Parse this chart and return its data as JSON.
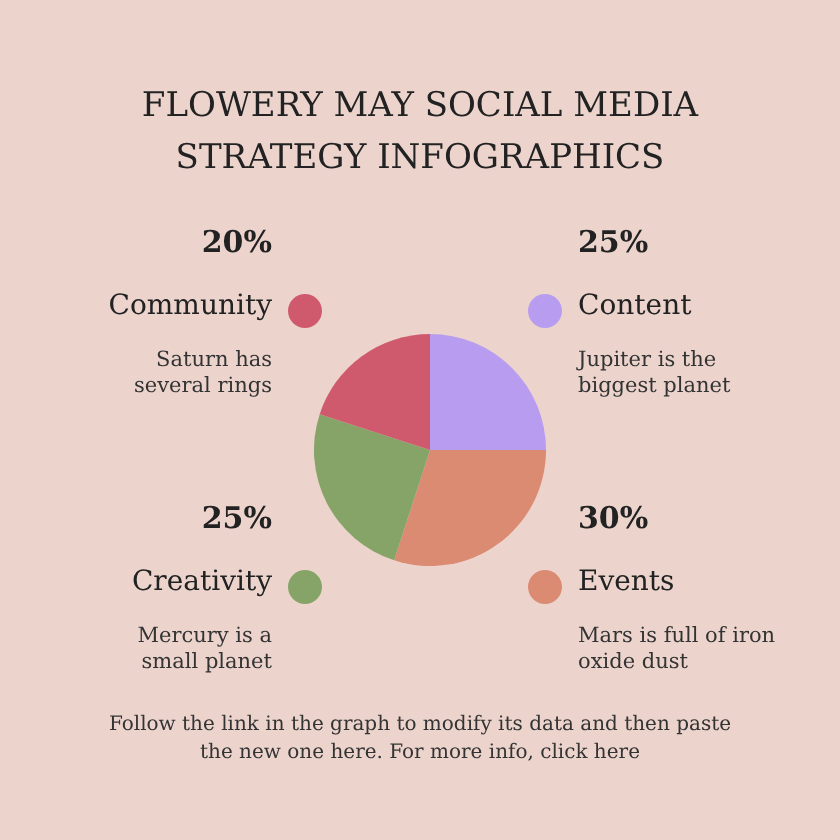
{
  "chart_data": {
    "type": "pie",
    "title": "FLOWERY MAY SOCIAL MEDIA STRATEGY INFOGRAPHICS",
    "categories": [
      "Content",
      "Events",
      "Creativity",
      "Community"
    ],
    "values": [
      25,
      30,
      25,
      20
    ],
    "value_labels": [
      "25%",
      "30%",
      "25%",
      "20%"
    ],
    "colors": [
      "#b89cf0",
      "#da8b72",
      "#86a468",
      "#cf5a6e"
    ],
    "legend": "top right",
    "annotations": [
      "Jupiter is the biggest planet",
      "Mars is full of iron oxide dust",
      "Mercury is a small planet",
      "Saturn has several rings",
      "Follow the link in the graph to modify its data and then paste the new one here. For more info, click here"
    ]
  }
}
